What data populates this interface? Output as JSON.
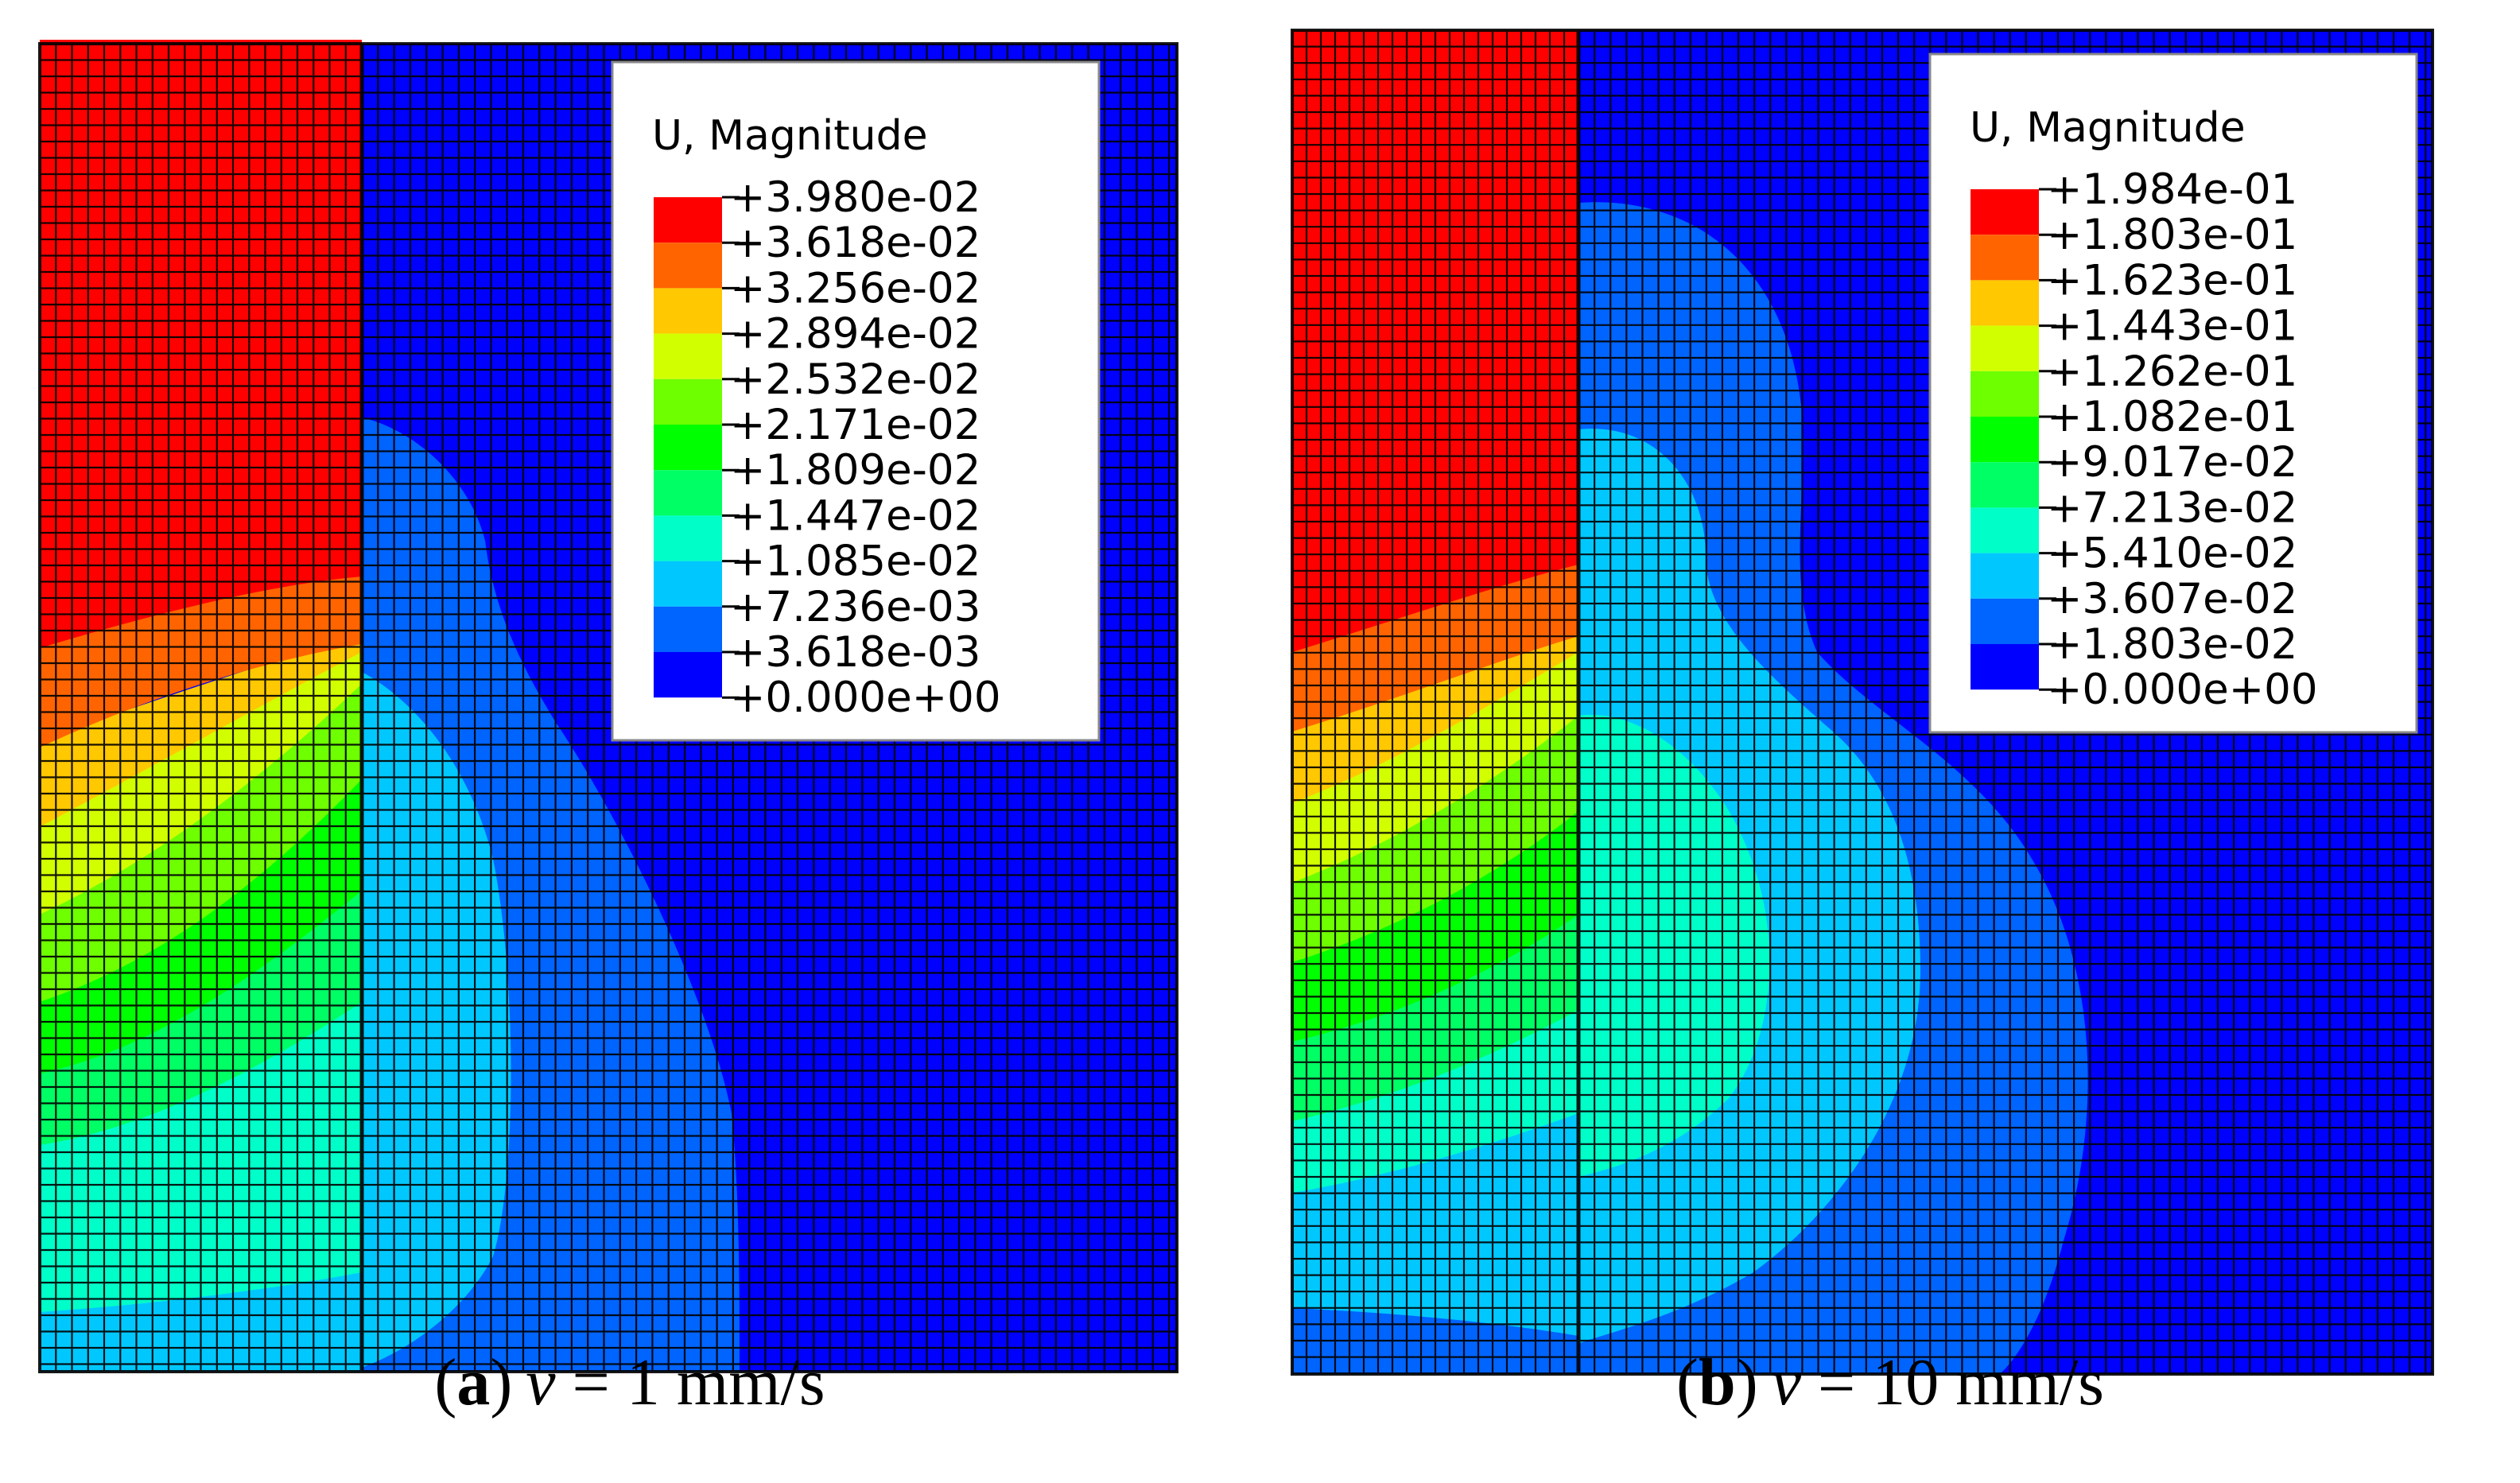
{
  "panels": [
    {
      "id": "a",
      "legend_title": "U, Magnitude",
      "legend_values": [
        "+3.980e-02",
        "+3.618e-02",
        "+3.256e-02",
        "+2.894e-02",
        "+2.532e-02",
        "+2.171e-02",
        "+1.809e-02",
        "+1.447e-02",
        "+1.085e-02",
        "+7.236e-03",
        "+3.618e-03",
        "+0.000e+00"
      ],
      "caption": {
        "open": "(",
        "label": "a",
        "close": ")",
        "var": "v",
        "rest": " = 1 mm/s"
      }
    },
    {
      "id": "b",
      "legend_title": "U, Magnitude",
      "legend_values": [
        "+1.984e-01",
        "+1.803e-01",
        "+1.623e-01",
        "+1.443e-01",
        "+1.262e-01",
        "+1.082e-01",
        "+9.017e-02",
        "+7.213e-02",
        "+5.410e-02",
        "+3.607e-02",
        "+1.803e-02",
        "+0.000e+00"
      ],
      "caption": {
        "open": "(",
        "label": "b",
        "close": ")",
        "var": "v",
        "rest": " = 10 mm/s"
      }
    }
  ],
  "colors": [
    "#ff0000",
    "#ff6400",
    "#ffc800",
    "#d2ff00",
    "#6eff00",
    "#00ff00",
    "#00ff64",
    "#00ffc8",
    "#00c8ff",
    "#0064ff",
    "#0000ff"
  ]
}
